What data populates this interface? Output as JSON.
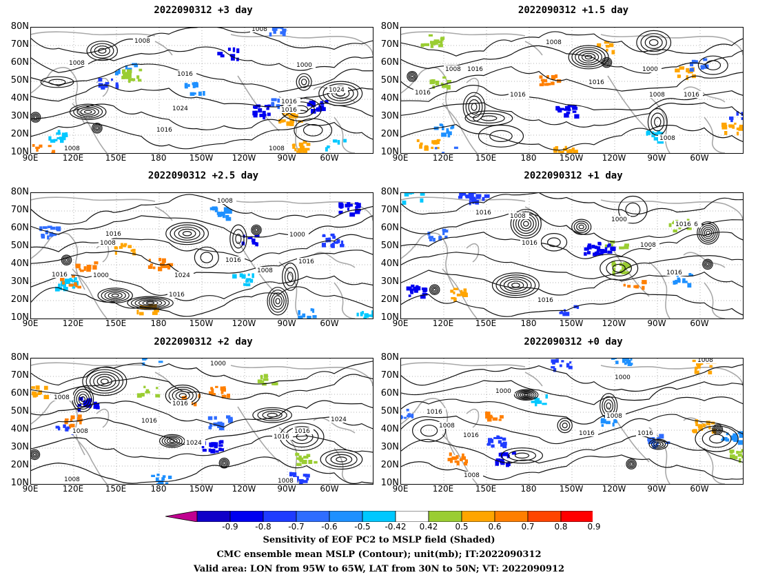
{
  "panels": [
    {
      "title": "2022090312 +3 day"
    },
    {
      "title": "2022090312 +1.5 day"
    },
    {
      "title": "2022090312 +2.5 day"
    },
    {
      "title": "2022090312 +1 day"
    },
    {
      "title": "2022090312 +2 day"
    },
    {
      "title": "2022090312 +0 day"
    }
  ],
  "lat_labels": [
    "80N",
    "70N",
    "60N",
    "50N",
    "40N",
    "30N",
    "20N",
    "10N"
  ],
  "lon_labels": [
    "90E",
    "120E",
    "150E",
    "180",
    "150W",
    "120W",
    "90W",
    "60W"
  ],
  "contour_labels": {
    "p0": [
      "1008",
      "1008",
      "1008",
      "1016",
      "1000",
      "1024",
      "1024",
      "1016",
      "1016",
      "1016",
      "1008",
      "1008"
    ],
    "p1": [
      "1008",
      "1016",
      "1008",
      "1016",
      "1016",
      "1000",
      "1016",
      "1008",
      "1016",
      "1008"
    ],
    "p2": [
      "1008",
      "1016",
      "1008",
      "1000",
      "1016",
      "1000",
      "1016",
      "1016",
      "1008",
      "1024",
      "1016"
    ],
    "p3": [
      "1016",
      "1008",
      "1016",
      "1000",
      "1008",
      "1016",
      "1016",
      "1016",
      "1016"
    ],
    "p4": [
      "1000",
      "1008",
      "1016",
      "1016",
      "1008",
      "1024",
      "1016",
      "1016",
      "1024",
      "1008",
      "1008"
    ],
    "p5": [
      "1008",
      "1000",
      "1000",
      "1016",
      "1008",
      "1016",
      "1008",
      "1016",
      "1016",
      "1008"
    ]
  },
  "colorbar": {
    "ticks": [
      "-0.9",
      "-0.8",
      "-0.7",
      "-0.6",
      "-0.5",
      "-0.42",
      "0.42",
      "0.5",
      "0.6",
      "0.7",
      "0.8",
      "0.9"
    ],
    "colors": [
      "#1000c8",
      "#0000f0",
      "#1f3cff",
      "#2f6dff",
      "#1e90ff",
      "#00c8ff",
      "#ffffff",
      "#9acd32",
      "#ffa500",
      "#ff7f00",
      "#ff4500",
      "#ff0000"
    ],
    "low_extend_color": "#c00090",
    "high_extend_color": "#ffa0c8"
  },
  "captions": [
    "Sensitivity of EOF PC2 to MSLP field (Shaded)",
    "CMC ensemble mean MSLP (Contour); unit(mb); IT:2022090312",
    "Valid area: LON from 95W to 65W, LAT from 30N to 50N; VT: 2022090912"
  ]
}
